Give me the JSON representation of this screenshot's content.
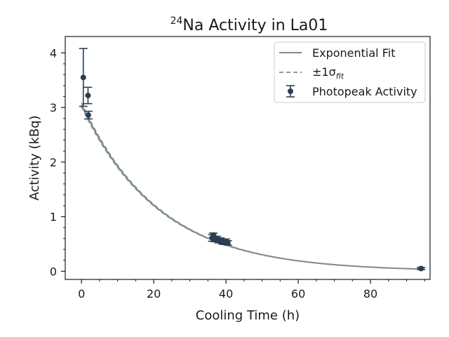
{
  "chart_data": {
    "type": "scatter",
    "title_isotope_mass": "24",
    "title_text": "Na Activity in La01",
    "xlabel": "Cooling Time (h)",
    "ylabel": "Activity (kBq)",
    "xlim": [
      -4.5,
      96.5
    ],
    "ylim": [
      -0.15,
      4.3
    ],
    "x_ticks": [
      0,
      20,
      40,
      60,
      80
    ],
    "y_ticks": [
      0,
      1,
      2,
      3,
      4
    ],
    "grid": false,
    "legend_position": "top-right",
    "legend": {
      "fit_label": "Exponential Fit",
      "sigma_prefix": "±1σ",
      "sigma_subscript": "fit",
      "points_label": "Photopeak Activity"
    },
    "fit": {
      "A0": 3.05,
      "half_life_h": 15.0,
      "sigma_frac": 0.012
    },
    "points": [
      {
        "x": 0.5,
        "y": 3.55,
        "yerr": 0.53
      },
      {
        "x": 1.8,
        "y": 3.22,
        "yerr": 0.15
      },
      {
        "x": 1.9,
        "y": 2.86,
        "yerr": 0.07
      },
      {
        "x": 36.2,
        "y": 0.61,
        "yerr": 0.06
      },
      {
        "x": 36.5,
        "y": 0.66,
        "yerr": 0.04
      },
      {
        "x": 37.0,
        "y": 0.58,
        "yerr": 0.04
      },
      {
        "x": 37.5,
        "y": 0.6,
        "yerr": 0.04
      },
      {
        "x": 38.0,
        "y": 0.56,
        "yerr": 0.04
      },
      {
        "x": 38.5,
        "y": 0.57,
        "yerr": 0.04
      },
      {
        "x": 39.0,
        "y": 0.54,
        "yerr": 0.04
      },
      {
        "x": 39.5,
        "y": 0.53,
        "yerr": 0.04
      },
      {
        "x": 40.0,
        "y": 0.55,
        "yerr": 0.04
      },
      {
        "x": 40.5,
        "y": 0.52,
        "yerr": 0.04
      },
      {
        "x": 94.0,
        "y": 0.05,
        "yerr": 0.02
      }
    ],
    "colors": {
      "fit": "#7f8c8d",
      "points": "#2c3e50",
      "axis": "#1a1a1a"
    }
  }
}
